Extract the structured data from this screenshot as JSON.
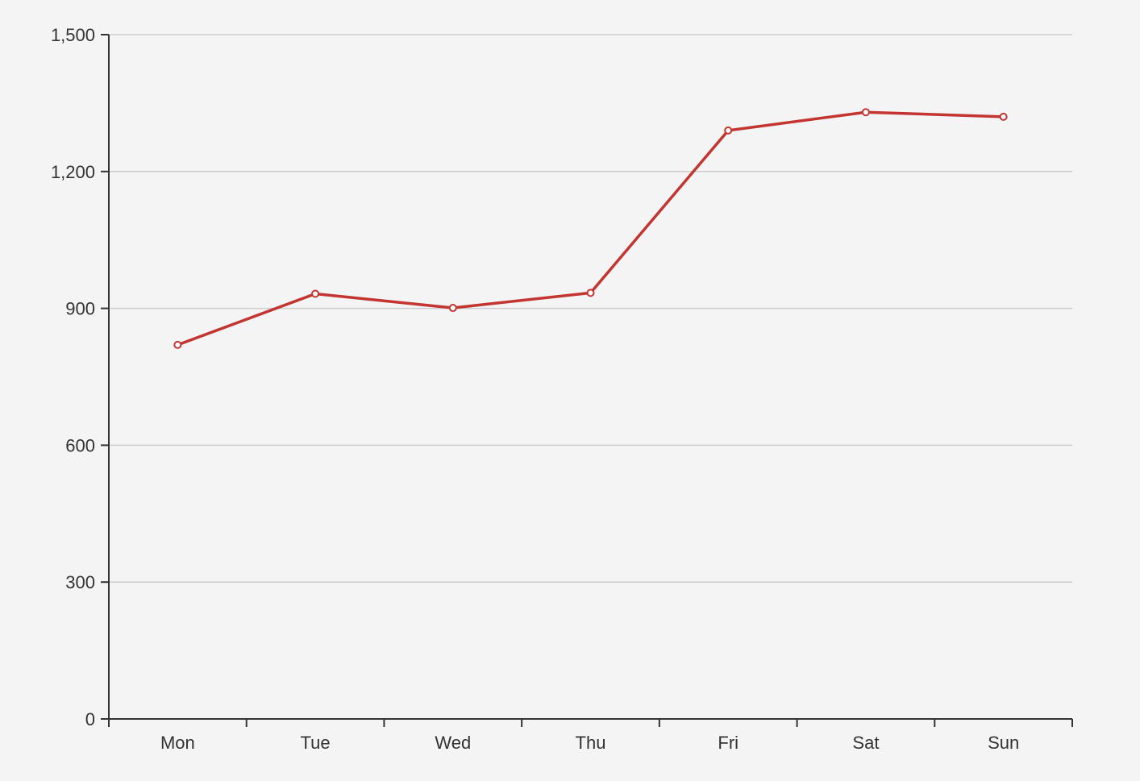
{
  "chart_data": {
    "type": "line",
    "title": "",
    "xlabel": "",
    "ylabel": "",
    "categories": [
      "Mon",
      "Tue",
      "Wed",
      "Thu",
      "Fri",
      "Sat",
      "Sun"
    ],
    "series": [
      {
        "values": [
          820,
          932,
          901,
          934,
          1290,
          1330,
          1320
        ],
        "color": "#c23531"
      }
    ],
    "ylim": [
      0,
      1500
    ],
    "yticks": [
      0,
      300,
      600,
      900,
      1200,
      1500
    ],
    "ytick_labels": [
      "0",
      "300",
      "600",
      "900",
      "1,200",
      "1,500"
    ],
    "grid": true,
    "legend": "none"
  }
}
